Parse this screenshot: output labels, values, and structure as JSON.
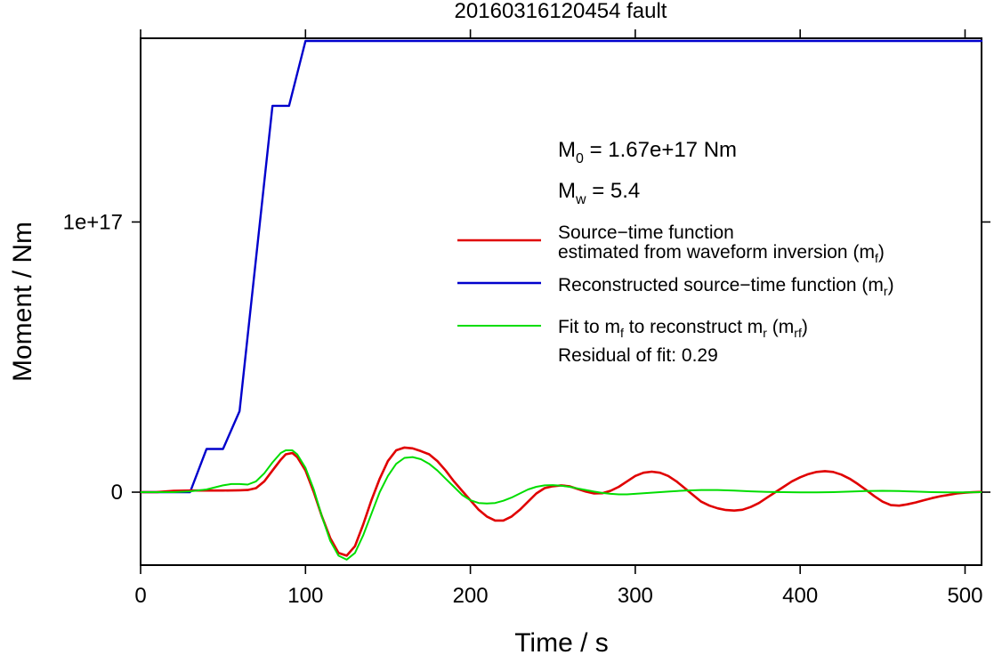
{
  "chart_data": {
    "type": "line",
    "title": "20160316120454 fault",
    "xlabel": "Time / s",
    "ylabel": "Moment / Nm",
    "xlim": [
      0,
      510
    ],
    "ylim": [
      -2.7e+16,
      1.68e+17
    ],
    "x_ticks": [
      {
        "value": 0,
        "label": "0"
      },
      {
        "value": 100,
        "label": "100"
      },
      {
        "value": 200,
        "label": "200"
      },
      {
        "value": 300,
        "label": "300"
      },
      {
        "value": 400,
        "label": "400"
      },
      {
        "value": 500,
        "label": "500"
      }
    ],
    "y_ticks": [
      {
        "value": 0,
        "label": "0"
      },
      {
        "value": 1e+17,
        "label": "1e+17"
      }
    ],
    "grid": false,
    "legend_position": "right-center",
    "series": [
      {
        "key": "mf",
        "color": "#e00000",
        "x": [
          0,
          10,
          20,
          30,
          40,
          50,
          60,
          65,
          70,
          75,
          80,
          85,
          88,
          92,
          95,
          100,
          105,
          110,
          115,
          120,
          125,
          130,
          135,
          140,
          145,
          150,
          155,
          160,
          165,
          170,
          175,
          180,
          185,
          190,
          195,
          200,
          205,
          210,
          215,
          220,
          225,
          230,
          235,
          240,
          245,
          250,
          255,
          260,
          265,
          270,
          275,
          280,
          285,
          290,
          295,
          300,
          305,
          310,
          315,
          320,
          325,
          330,
          335,
          340,
          345,
          350,
          355,
          360,
          365,
          370,
          375,
          380,
          385,
          390,
          395,
          400,
          405,
          410,
          415,
          420,
          425,
          430,
          435,
          440,
          445,
          450,
          455,
          460,
          465,
          470,
          475,
          480,
          485,
          490,
          495,
          500,
          505,
          510
        ],
        "y": [
          0,
          0.05,
          0.5,
          0.6,
          0.6,
          0.6,
          0.7,
          0.8,
          1.5,
          4.0,
          8.0,
          12.0,
          14.0,
          14.5,
          13.0,
          8.0,
          0,
          -9.0,
          -17.0,
          -22.5,
          -23.5,
          -20.0,
          -12.0,
          -3.0,
          5.0,
          11.5,
          15.5,
          16.5,
          16.2,
          15.2,
          14.0,
          11.5,
          8.0,
          4.0,
          0.5,
          -3.0,
          -6.5,
          -9.0,
          -10.5,
          -10.5,
          -9.0,
          -6.5,
          -3.5,
          -0.5,
          1.5,
          2.2,
          2.5,
          2.2,
          1.2,
          0.2,
          -0.5,
          -0.4,
          0.5,
          2.0,
          4.0,
          6.0,
          7.2,
          7.6,
          7.2,
          6.0,
          4.0,
          1.5,
          -1.0,
          -3.5,
          -5.0,
          -6.0,
          -6.6,
          -6.8,
          -6.5,
          -5.5,
          -4.0,
          -2.0,
          0,
          2.0,
          4.0,
          5.5,
          6.7,
          7.5,
          7.8,
          7.5,
          6.5,
          5.0,
          3.0,
          0.8,
          -1.5,
          -3.5,
          -4.8,
          -5.0,
          -4.5,
          -3.8,
          -3.0,
          -2.2,
          -1.5,
          -1.0,
          -0.5,
          -0.2,
          0,
          0.1
        ],
        "y_unit": "1e15 Nm"
      },
      {
        "key": "mr",
        "color": "#0000cc",
        "x": [
          0,
          30,
          40,
          50,
          60,
          80,
          90,
          100,
          510
        ],
        "y": [
          0,
          0,
          16,
          16,
          30,
          143,
          143,
          167,
          167
        ],
        "y_unit": "1e15 Nm"
      },
      {
        "key": "mrf",
        "color": "#00dd00",
        "x": [
          0,
          20,
          30,
          40,
          50,
          55,
          60,
          65,
          70,
          75,
          80,
          85,
          88,
          92,
          95,
          100,
          105,
          110,
          115,
          120,
          125,
          130,
          135,
          140,
          145,
          150,
          155,
          160,
          165,
          170,
          175,
          180,
          185,
          190,
          195,
          200,
          205,
          210,
          215,
          220,
          225,
          230,
          235,
          240,
          245,
          250,
          255,
          260,
          265,
          270,
          275,
          280,
          285,
          290,
          295,
          300,
          310,
          320,
          330,
          340,
          350,
          360,
          370,
          380,
          390,
          400,
          410,
          420,
          430,
          440,
          450,
          460,
          470,
          480,
          490,
          500,
          510
        ],
        "y": [
          0,
          0,
          0.3,
          1.0,
          2.5,
          3.0,
          3.0,
          2.8,
          4.0,
          7.0,
          11.0,
          14.5,
          15.5,
          15.5,
          14.0,
          9.0,
          1.0,
          -9.0,
          -18.0,
          -23.5,
          -25.0,
          -22.5,
          -16.0,
          -8.0,
          0,
          6.0,
          10.5,
          12.7,
          13.0,
          12.2,
          10.5,
          8.0,
          5.0,
          2.0,
          -1.0,
          -3.0,
          -4.0,
          -4.2,
          -4.0,
          -3.2,
          -2.0,
          -0.5,
          1.0,
          2.0,
          2.5,
          2.6,
          2.4,
          2.0,
          1.4,
          0.8,
          0.2,
          -0.3,
          -0.6,
          -0.8,
          -0.8,
          -0.6,
          -0.2,
          0.2,
          0.6,
          0.8,
          0.8,
          0.6,
          0.3,
          0.1,
          0,
          -0.1,
          -0.1,
          0,
          0.2,
          0.4,
          0.5,
          0.4,
          0.2,
          0,
          -0.1,
          -0.1,
          0
        ],
        "y_unit": "1e15 Nm"
      }
    ],
    "annotations": {
      "m0": {
        "base": "M",
        "sub": "0",
        "rest": " = 1.67e+17 Nm"
      },
      "mw": {
        "base": "M",
        "sub": "w",
        "rest": " = 5.4"
      },
      "residual": "Residual of fit: 0.29"
    },
    "legend": {
      "mf_line1": "Source−time function",
      "mf_line2_a": "estimated from waveform inversion (m",
      "mf_line2_sub": "f",
      "mf_line2_b": ")",
      "mr_a": "Reconstructed source−time function (m",
      "mr_sub": "r",
      "mr_b": ")",
      "mrf_a": "Fit to m",
      "mrf_sub1": "f",
      "mrf_b": " to reconstruct m",
      "mrf_sub2": "r",
      "mrf_c": " (m",
      "mrf_sub3": "rf",
      "mrf_d": ")"
    }
  }
}
